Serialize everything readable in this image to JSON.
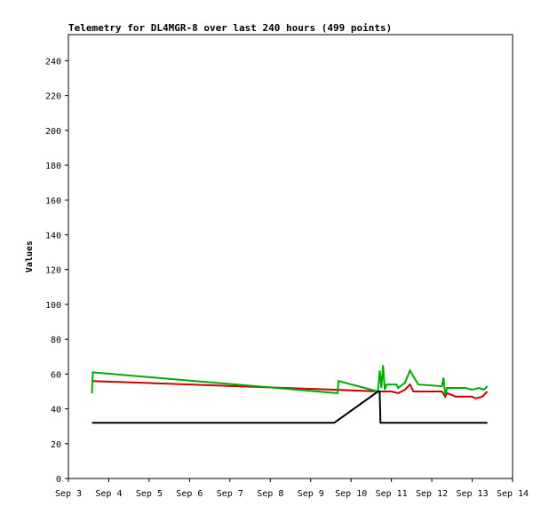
{
  "chart_data": {
    "type": "line",
    "title": "Telemetry for DL4MGR-8 over last 240 hours (499 points)",
    "xlabel": "",
    "ylabel": "Values",
    "xlim": [
      "2023-09-03",
      "2023-09-14"
    ],
    "ylim": [
      0,
      255
    ],
    "x_ticks": [
      "Sep 3",
      "Sep 4",
      "Sep 5",
      "Sep 6",
      "Sep 7",
      "Sep 8",
      "Sep 9",
      "Sep 10",
      "Sep 11",
      "Sep 12",
      "Sep 13",
      "Sep 14"
    ],
    "y_ticks": [
      0,
      20,
      40,
      60,
      80,
      100,
      120,
      140,
      160,
      180,
      200,
      220,
      240
    ],
    "grid": false,
    "legend": "none",
    "series": [
      {
        "color": "#cc0000",
        "points": [
          [
            "2023-09-03 14:00",
            56
          ],
          [
            "2023-09-09 14:00",
            51
          ],
          [
            "2023-09-10 17:00",
            50
          ],
          [
            "2023-09-11 00:00",
            50
          ],
          [
            "2023-09-11 04:00",
            49
          ],
          [
            "2023-09-11 08:00",
            51
          ],
          [
            "2023-09-11 11:00",
            54
          ],
          [
            "2023-09-11 13:00",
            50
          ],
          [
            "2023-09-12 06:00",
            50
          ],
          [
            "2023-09-12 08:00",
            47
          ],
          [
            "2023-09-12 09:00",
            49
          ],
          [
            "2023-09-12 12:00",
            48
          ],
          [
            "2023-09-12 14:00",
            47
          ],
          [
            "2023-09-13 00:00",
            47
          ],
          [
            "2023-09-13 02:00",
            46
          ],
          [
            "2023-09-13 06:00",
            47
          ],
          [
            "2023-09-13 09:00",
            50
          ]
        ]
      },
      {
        "color": "#00aa00",
        "points": [
          [
            "2023-09-03 14:00",
            49
          ],
          [
            "2023-09-03 14:30",
            61
          ],
          [
            "2023-09-09 16:00",
            49
          ],
          [
            "2023-09-09 16:30",
            56
          ],
          [
            "2023-09-10 16:00",
            50
          ],
          [
            "2023-09-10 17:00",
            62
          ],
          [
            "2023-09-10 18:00",
            52
          ],
          [
            "2023-09-10 19:00",
            65
          ],
          [
            "2023-09-10 20:00",
            51
          ],
          [
            "2023-09-10 21:00",
            54
          ],
          [
            "2023-09-11 03:00",
            54
          ],
          [
            "2023-09-11 04:00",
            52
          ],
          [
            "2023-09-11 08:00",
            55
          ],
          [
            "2023-09-11 11:00",
            62
          ],
          [
            "2023-09-11 14:00",
            57
          ],
          [
            "2023-09-11 16:00",
            54
          ],
          [
            "2023-09-12 06:00",
            53
          ],
          [
            "2023-09-12 07:00",
            58
          ],
          [
            "2023-09-12 08:00",
            48
          ],
          [
            "2023-09-12 09:00",
            52
          ],
          [
            "2023-09-12 20:00",
            52
          ],
          [
            "2023-09-13 00:00",
            51
          ],
          [
            "2023-09-13 04:00",
            52
          ],
          [
            "2023-09-13 07:00",
            51
          ],
          [
            "2023-09-13 09:00",
            53
          ]
        ]
      },
      {
        "color": "#000000",
        "points": [
          [
            "2023-09-03 14:00",
            32
          ],
          [
            "2023-09-09 14:00",
            32
          ],
          [
            "2023-09-10 16:00",
            50
          ],
          [
            "2023-09-10 17:00",
            50
          ],
          [
            "2023-09-10 17:30",
            32
          ],
          [
            "2023-09-13 09:00",
            32
          ]
        ]
      }
    ]
  }
}
